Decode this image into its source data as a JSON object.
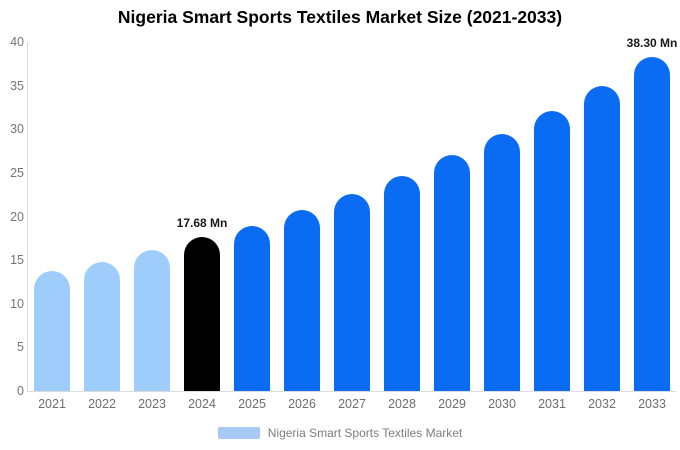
{
  "chart_data": {
    "type": "bar",
    "title": "Nigeria Smart Sports Textiles Market Size (2021-2033)",
    "categories": [
      "2021",
      "2022",
      "2023",
      "2024",
      "2025",
      "2026",
      "2027",
      "2028",
      "2029",
      "2030",
      "2031",
      "2032",
      "2033"
    ],
    "values": [
      13.8,
      14.8,
      16.2,
      17.68,
      18.9,
      20.8,
      22.6,
      24.6,
      27.0,
      29.4,
      32.1,
      34.9,
      38.3
    ],
    "unit": "Mn",
    "xlabel": "",
    "ylabel": "",
    "ylim": [
      0,
      40
    ],
    "yticks": [
      0,
      5,
      10,
      15,
      20,
      25,
      30,
      35,
      40
    ],
    "grid": false,
    "legend_position": "bottom",
    "bar_colors": [
      "#9FCDFB",
      "#9FCDFB",
      "#9FCDFB",
      "#000000",
      "#0A6CF3",
      "#0A6CF3",
      "#0A6CF3",
      "#0A6CF3",
      "#0A6CF3",
      "#0A6CF3",
      "#0A6CF3",
      "#0A6CF3",
      "#0A6CF3"
    ],
    "annotations": [
      {
        "category": "2024",
        "text": "17.68 Mn"
      },
      {
        "category": "2033",
        "text": "38.30 Mn"
      }
    ]
  },
  "legend": {
    "label": "Nigeria Smart Sports Textiles Market",
    "swatch_color": "#A8C9F3"
  },
  "colors": {
    "historical_bar": "#9FCDFB",
    "base_year_bar": "#000000",
    "forecast_bar": "#0A6CF3",
    "axis_line": "#DCDCDC",
    "tick_text": "#757575",
    "title_text": "#000000",
    "annotation_text": "#1A1A1A"
  }
}
